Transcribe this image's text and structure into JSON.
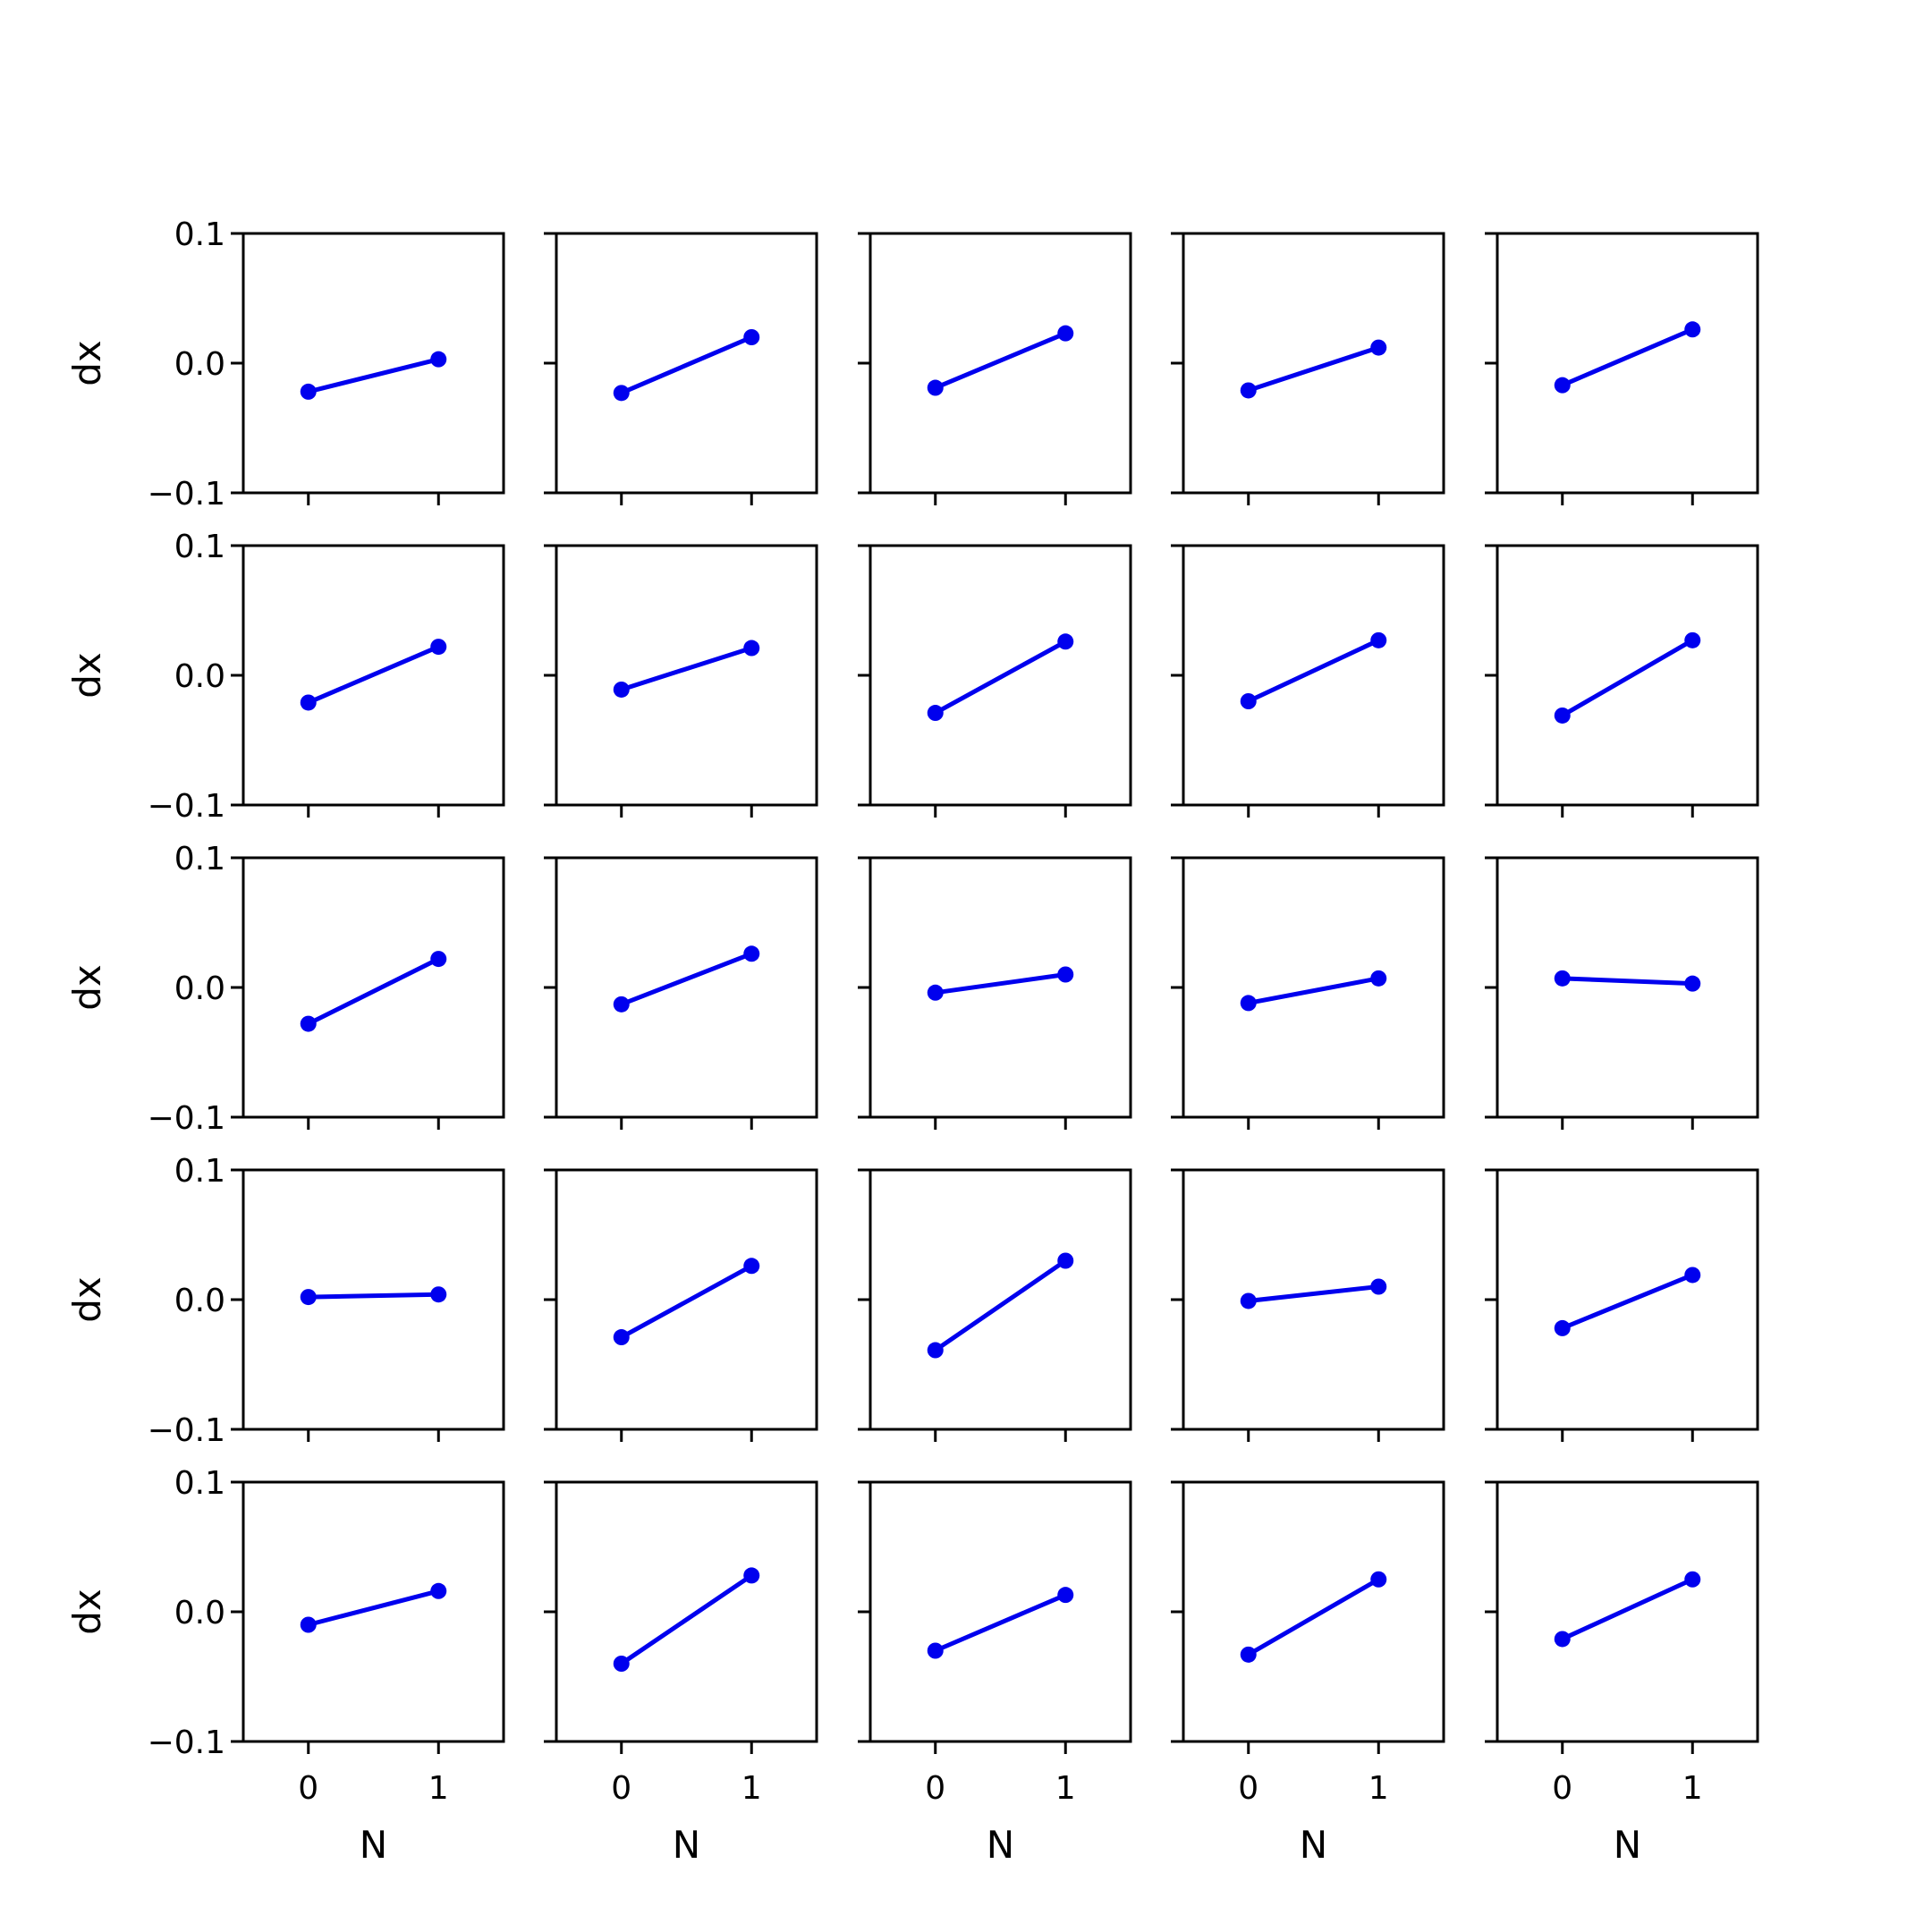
{
  "chart_data": {
    "type": "line",
    "layout": "5x5 small multiples",
    "xlabel": "N",
    "ylabel": "dx",
    "xlim": [
      -0.5,
      1.5
    ],
    "ylim": [
      -0.1,
      0.1
    ],
    "xticks": [
      0,
      1
    ],
    "xtick_labels": [
      "0",
      "1"
    ],
    "yticks": [
      -0.1,
      0.0,
      0.1
    ],
    "ytick_labels": [
      "−0.1",
      "0.0",
      "0.1"
    ],
    "sharex": true,
    "sharey": true,
    "grid": false,
    "line_color": "#0000ee",
    "panels": [
      {
        "x": [
          0,
          1
        ],
        "y": [
          -0.022,
          0.003
        ]
      },
      {
        "x": [
          0,
          1
        ],
        "y": [
          -0.023,
          0.02
        ]
      },
      {
        "x": [
          0,
          1
        ],
        "y": [
          -0.019,
          0.023
        ]
      },
      {
        "x": [
          0,
          1
        ],
        "y": [
          -0.021,
          0.012
        ]
      },
      {
        "x": [
          0,
          1
        ],
        "y": [
          -0.017,
          0.026
        ]
      },
      {
        "x": [
          0,
          1
        ],
        "y": [
          -0.021,
          0.022
        ]
      },
      {
        "x": [
          0,
          1
        ],
        "y": [
          -0.011,
          0.021
        ]
      },
      {
        "x": [
          0,
          1
        ],
        "y": [
          -0.029,
          0.026
        ]
      },
      {
        "x": [
          0,
          1
        ],
        "y": [
          -0.02,
          0.027
        ]
      },
      {
        "x": [
          0,
          1
        ],
        "y": [
          -0.031,
          0.027
        ]
      },
      {
        "x": [
          0,
          1
        ],
        "y": [
          -0.028,
          0.022
        ]
      },
      {
        "x": [
          0,
          1
        ],
        "y": [
          -0.013,
          0.026
        ]
      },
      {
        "x": [
          0,
          1
        ],
        "y": [
          -0.004,
          0.01
        ]
      },
      {
        "x": [
          0,
          1
        ],
        "y": [
          -0.012,
          0.007
        ]
      },
      {
        "x": [
          0,
          1
        ],
        "y": [
          0.007,
          0.003
        ]
      },
      {
        "x": [
          0,
          1
        ],
        "y": [
          0.002,
          0.004
        ]
      },
      {
        "x": [
          0,
          1
        ],
        "y": [
          -0.029,
          0.026
        ]
      },
      {
        "x": [
          0,
          1
        ],
        "y": [
          -0.039,
          0.03
        ]
      },
      {
        "x": [
          0,
          1
        ],
        "y": [
          -0.001,
          0.01
        ]
      },
      {
        "x": [
          0,
          1
        ],
        "y": [
          -0.022,
          0.019
        ]
      },
      {
        "x": [
          0,
          1
        ],
        "y": [
          -0.01,
          0.016
        ]
      },
      {
        "x": [
          0,
          1
        ],
        "y": [
          -0.04,
          0.028
        ]
      },
      {
        "x": [
          0,
          1
        ],
        "y": [
          -0.03,
          0.013
        ]
      },
      {
        "x": [
          0,
          1
        ],
        "y": [
          -0.033,
          0.025
        ]
      },
      {
        "x": [
          0,
          1
        ],
        "y": [
          -0.021,
          0.025
        ]
      }
    ]
  }
}
